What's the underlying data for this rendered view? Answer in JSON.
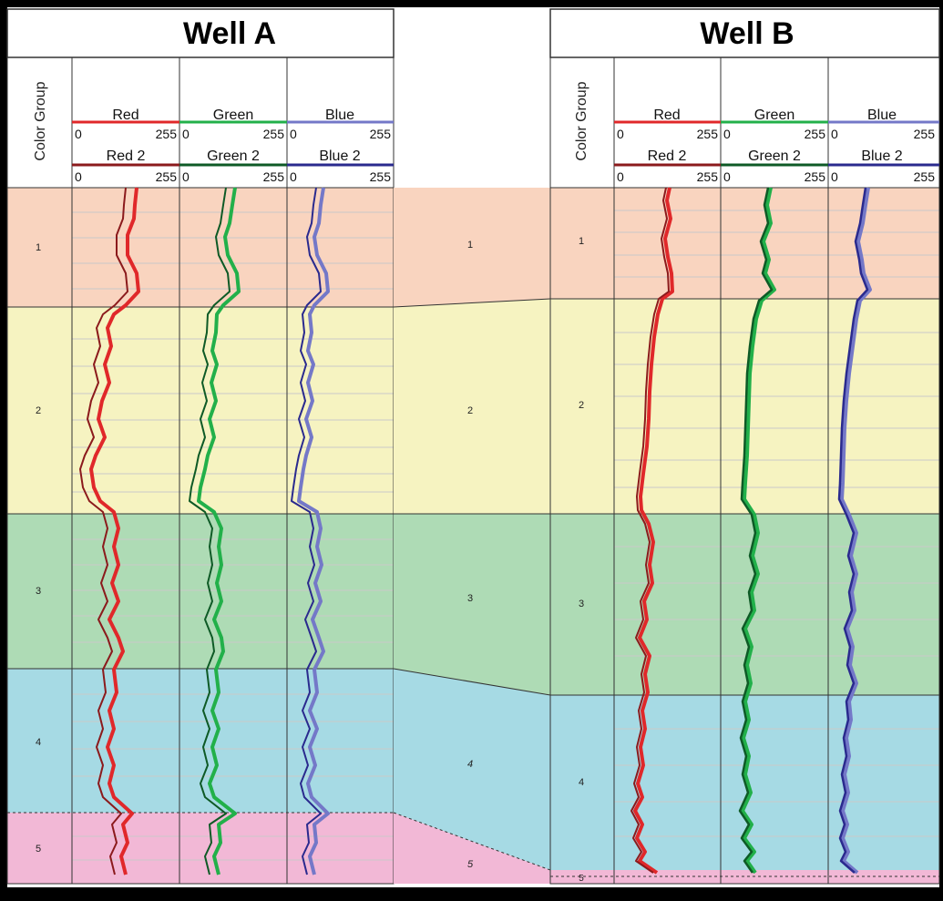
{
  "colors": {
    "red": "#e0282a",
    "red2": "#8b1a1c",
    "green": "#22b04a",
    "green2": "#0e5a26",
    "blue": "#7478c8",
    "blue2": "#2a2a8e",
    "zone1": "#f9d4bf",
    "zone2": "#f6f3c1",
    "zone3": "#aedbb5",
    "zone4": "#a6dae4",
    "zone5": "#f2b8d6"
  },
  "diagram": {
    "color_group_label": "Color Group",
    "wells": [
      {
        "name": "Well A",
        "tracks": [
          {
            "name": "Red",
            "min": "0",
            "max": "255",
            "name2": "Red 2",
            "min2": "0",
            "max2": "255"
          },
          {
            "name": "Green",
            "min": "0",
            "max": "255",
            "name2": "Green 2",
            "min2": "0",
            "max2": "255"
          },
          {
            "name": "Blue",
            "min": "0",
            "max": "255",
            "name2": "Blue 2",
            "min2": "0",
            "max2": "255"
          }
        ],
        "zones": [
          "1",
          "2",
          "3",
          "4",
          "5"
        ]
      },
      {
        "name": "Well B",
        "tracks": [
          {
            "name": "Red",
            "min": "0",
            "max": "255",
            "name2": "Red 2",
            "min2": "0",
            "max2": "255"
          },
          {
            "name": "Green",
            "min": "0",
            "max": "255",
            "name2": "Green 2",
            "min2": "0",
            "max2": "255"
          },
          {
            "name": "Blue",
            "min": "0",
            "max": "255",
            "name2": "Blue 2",
            "min2": "0",
            "max2": "255"
          }
        ],
        "zones": [
          "1",
          "2",
          "3",
          "4",
          "5"
        ]
      }
    ],
    "correlation_zones": [
      "1",
      "2",
      "3",
      "4",
      "5"
    ]
  }
}
